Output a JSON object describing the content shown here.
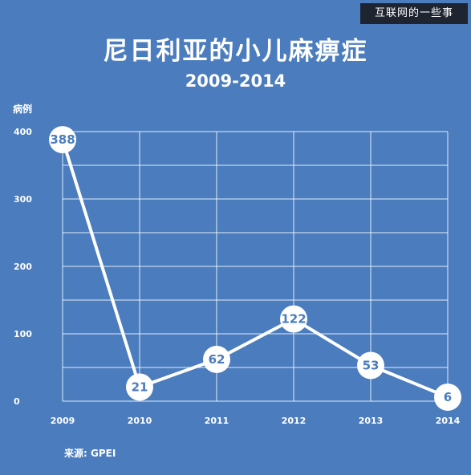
{
  "watermark": "互联网的一些事",
  "chart_data": {
    "type": "line",
    "title": "尼日利亚的小儿麻痹症",
    "subtitle": "2009-2014",
    "xlabel": "",
    "ylabel": "病例",
    "source": "来源: GPEI",
    "x": [
      "2009",
      "2010",
      "2011",
      "2012",
      "2013",
      "2014"
    ],
    "values": [
      388,
      21,
      62,
      122,
      53,
      6
    ],
    "ylim": [
      0,
      400
    ],
    "yticks": [
      0,
      100,
      200,
      300,
      400
    ],
    "grid": true,
    "colors": {
      "background": "#4a7cbe",
      "line": "#ffffff",
      "grid": "#ffffff",
      "marker_fill": "#ffffff",
      "label": "#4a7cbe"
    }
  }
}
